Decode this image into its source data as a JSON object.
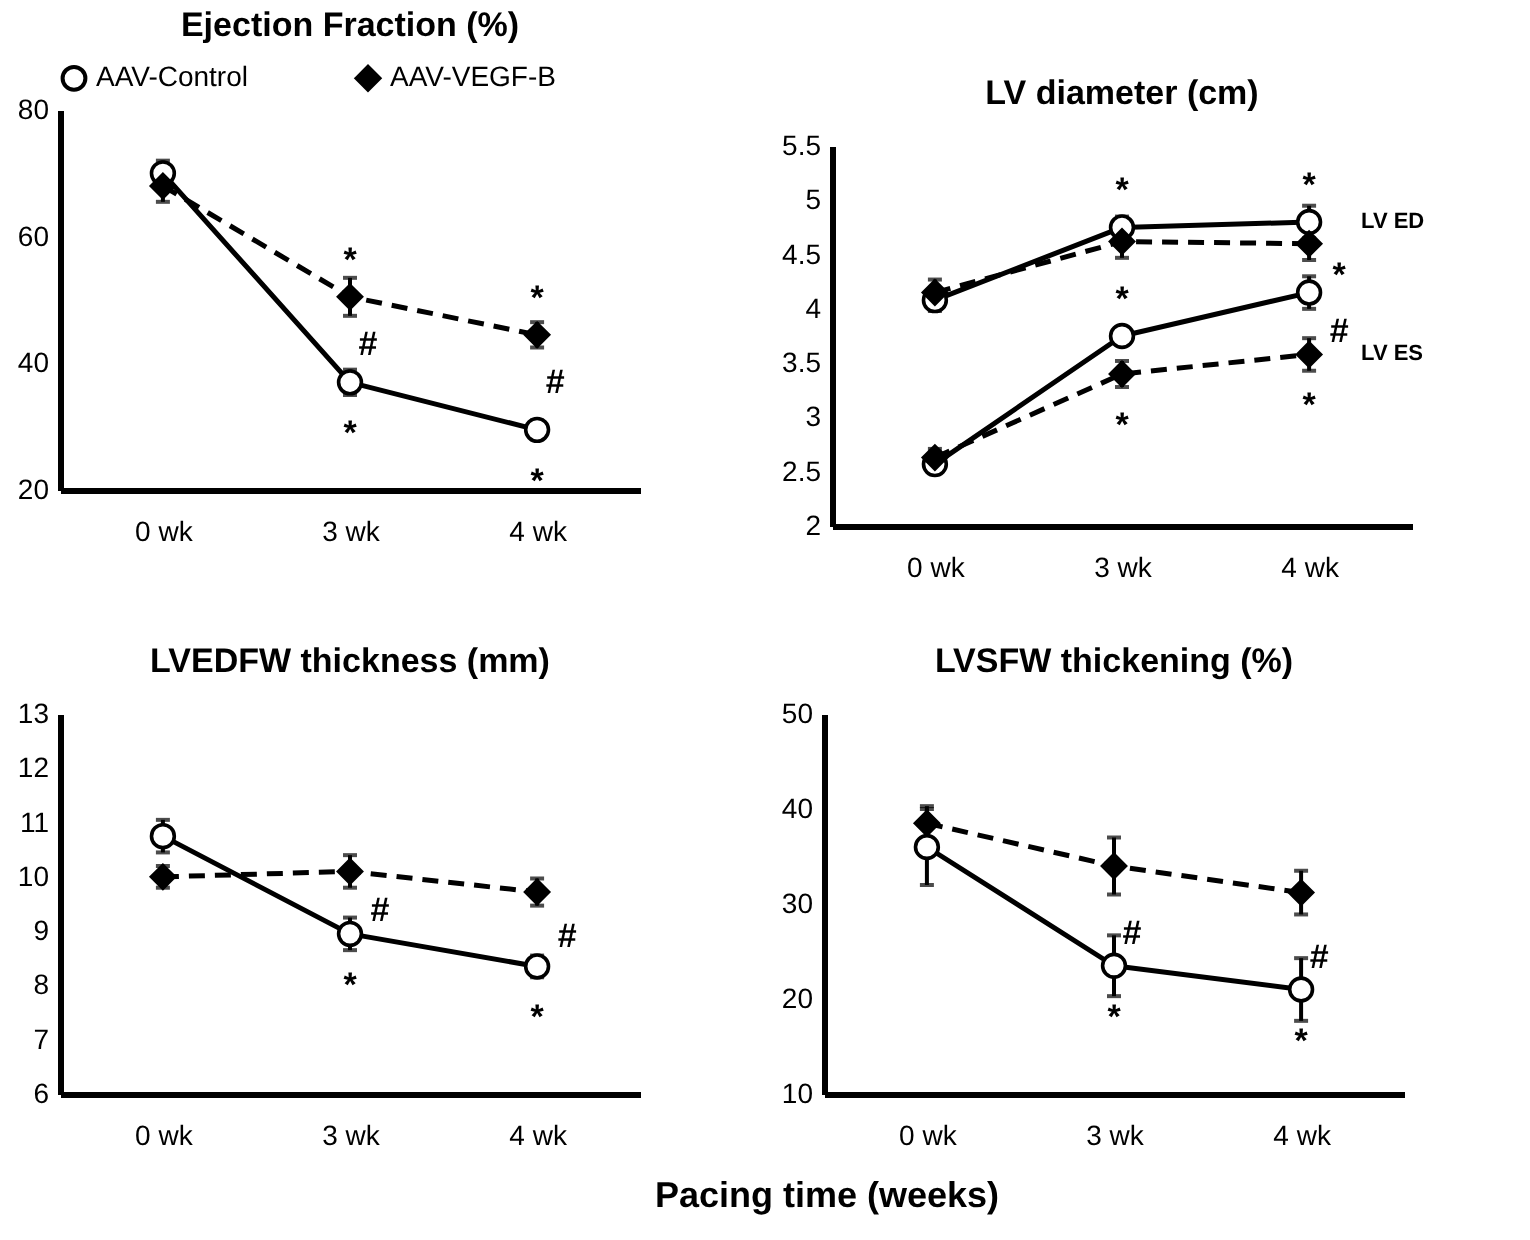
{
  "chart_data": [
    {
      "type": "line",
      "title": "Ejection Fraction (%)",
      "categories": [
        "0 wk",
        "3 wk",
        "4 wk"
      ],
      "ylim": [
        20,
        80
      ],
      "yticks": [
        20,
        40,
        60,
        80
      ],
      "legend": "top",
      "series": [
        {
          "name": "AAV-Control",
          "color": "#000000",
          "marker": "circle",
          "line_style": "solid",
          "values": [
            70,
            37,
            29.5
          ],
          "errors": [
            2,
            2,
            1.5
          ]
        },
        {
          "name": "AAV-VEGF-B",
          "color": "#000000",
          "marker": "diamond",
          "line_style": "dashed",
          "values": [
            68,
            50.5,
            44.5
          ],
          "errors": [
            2.5,
            3,
            2
          ]
        }
      ],
      "annotations": [
        {
          "text": "*",
          "x": "3 wk",
          "y": 50.5
        },
        {
          "text": "#",
          "x": "3 wk",
          "y": 50.5
        },
        {
          "text": "*",
          "x": "3 wk",
          "y": 37
        },
        {
          "text": "*",
          "x": "4 wk",
          "y": 44.5
        },
        {
          "text": "#",
          "x": "4 wk",
          "y": 44.5
        },
        {
          "text": "*",
          "x": "4 wk",
          "y": 29.5
        }
      ]
    },
    {
      "type": "line",
      "title": "LV diameter (cm)",
      "categories": [
        "0 wk",
        "3 wk",
        "4 wk"
      ],
      "ylim": [
        2,
        5.5
      ],
      "yticks": [
        2,
        2.5,
        3,
        3.5,
        4,
        4.5,
        5,
        5.5
      ],
      "series": [
        {
          "color": "#000000",
          "marker": "circle",
          "line_style": "solid",
          "values": [
            4.08,
            4.75,
            4.8
          ],
          "errors": [
            0.1,
            0.1,
            0.15
          ]
        },
        {
          "color": "#000000",
          "marker": "diamond",
          "line_style": "dashed",
          "values": [
            4.15,
            4.62,
            4.6
          ],
          "errors": [
            0.12,
            0.15,
            0.15
          ]
        },
        {
          "color": "#000000",
          "marker": "circle",
          "line_style": "solid",
          "values": [
            2.57,
            3.75,
            4.15
          ],
          "errors": [
            0.06,
            0.08,
            0.15
          ]
        },
        {
          "color": "#000000",
          "marker": "diamond",
          "line_style": "dashed",
          "values": [
            2.63,
            3.4,
            3.58
          ],
          "errors": [
            0.08,
            0.12,
            0.15
          ]
        }
      ],
      "annotations": [
        {
          "text": "*",
          "x": "3 wk",
          "y": 4.75
        },
        {
          "text": "*",
          "x": "4 wk",
          "y": 4.8
        },
        {
          "text": "LV ED",
          "x": "4 wk",
          "y": 4.8
        },
        {
          "text": "*",
          "x": "3 wk",
          "y": 3.75
        },
        {
          "text": "#",
          "x": "4 wk",
          "y": 4.15
        },
        {
          "text": "*",
          "x": "4 wk",
          "y": 4.15
        },
        {
          "text": "LV ES",
          "x": "4 wk",
          "y": 3.58
        },
        {
          "text": "*",
          "x": "3 wk",
          "y": 3.4
        },
        {
          "text": "*",
          "x": "4 wk",
          "y": 3.58
        }
      ]
    },
    {
      "type": "line",
      "title": "LVEDFW thickness (mm)",
      "xlabel": "Pacing time (weeks)",
      "categories": [
        "0 wk",
        "3 wk",
        "4 wk"
      ],
      "ylim": [
        6,
        13
      ],
      "yticks": [
        6,
        7,
        8,
        9,
        10,
        11,
        12,
        13
      ],
      "series": [
        {
          "color": "#000000",
          "marker": "circle",
          "line_style": "solid",
          "values": [
            10.75,
            8.95,
            8.35
          ],
          "errors": [
            0.3,
            0.3,
            0.2
          ]
        },
        {
          "color": "#000000",
          "marker": "diamond",
          "line_style": "dashed",
          "values": [
            10.0,
            10.1,
            9.72
          ],
          "errors": [
            0.2,
            0.3,
            0.25
          ]
        }
      ],
      "annotations": [
        {
          "text": "*",
          "x": "3 wk",
          "y": 8.95
        },
        {
          "text": "#",
          "x": "3 wk",
          "y": 8.95
        },
        {
          "text": "*",
          "x": "4 wk",
          "y": 8.35
        },
        {
          "text": "#",
          "x": "4 wk",
          "y": 8.35
        }
      ]
    },
    {
      "type": "line",
      "title": "LVSFW thickening (%)",
      "categories": [
        "0 wk",
        "3 wk",
        "4 wk"
      ],
      "ylim": [
        10,
        50
      ],
      "yticks": [
        10,
        20,
        30,
        40,
        50
      ],
      "series": [
        {
          "color": "#000000",
          "marker": "circle",
          "line_style": "solid",
          "values": [
            36,
            23.5,
            21
          ],
          "errors": [
            4,
            3.2,
            3.3
          ]
        },
        {
          "color": "#000000",
          "marker": "diamond",
          "line_style": "dashed",
          "values": [
            38.5,
            34,
            31.2
          ],
          "errors": [
            1.8,
            3,
            2.3
          ]
        }
      ],
      "annotations": [
        {
          "text": "*",
          "x": "3 wk",
          "y": 23.5
        },
        {
          "text": "#",
          "x": "3 wk",
          "y": 23.5
        },
        {
          "text": "*",
          "x": "4 wk",
          "y": 21
        },
        {
          "text": "#",
          "x": "4 wk",
          "y": 21
        }
      ]
    }
  ]
}
